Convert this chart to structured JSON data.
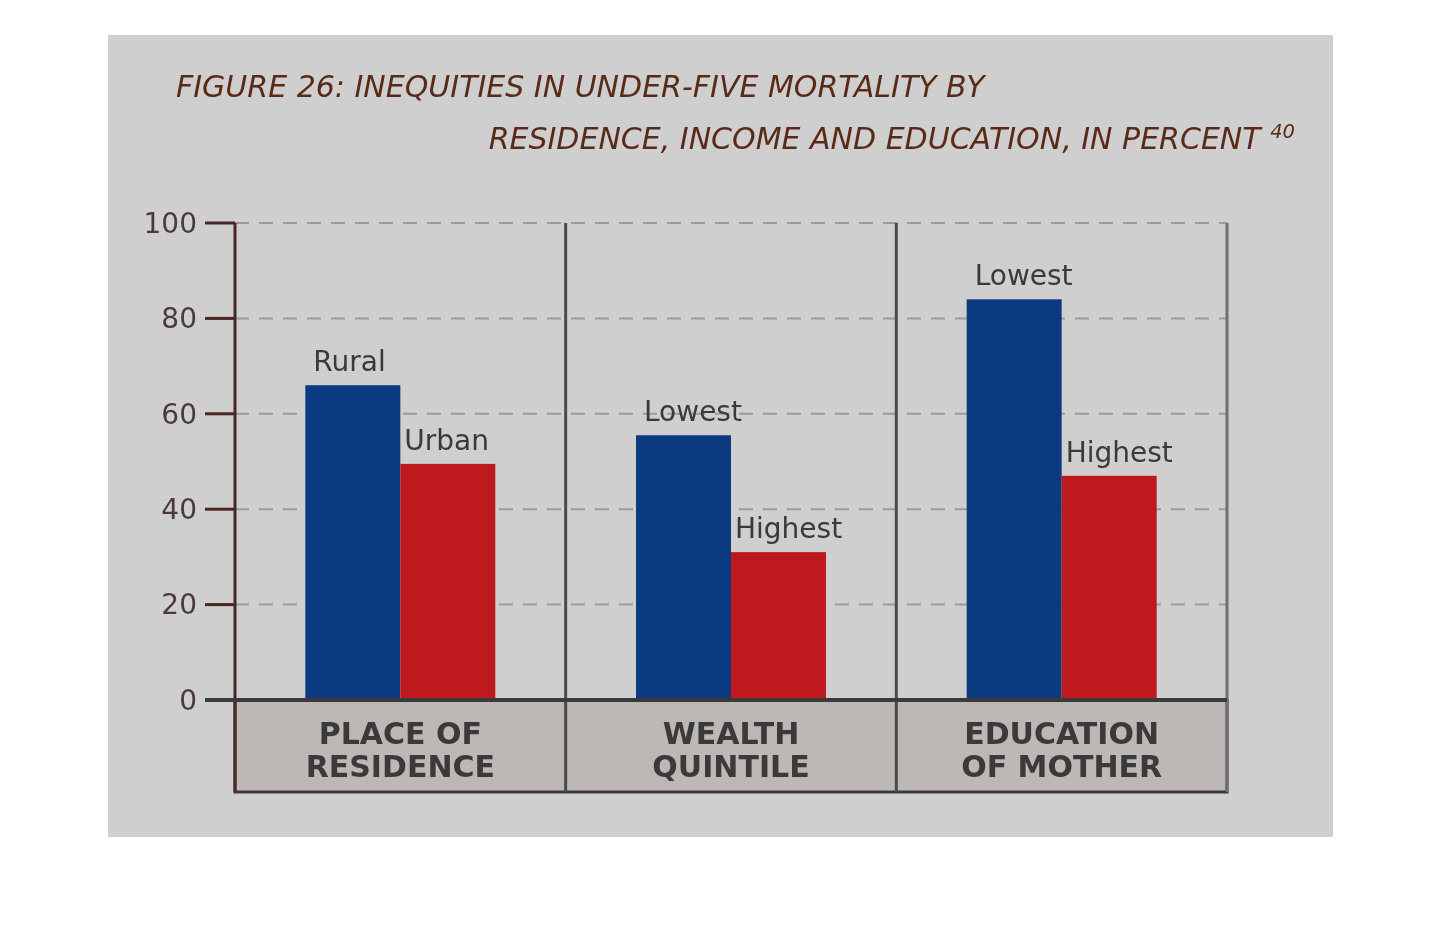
{
  "chart_data": {
    "type": "bar",
    "title": "FIGURE 26: INEQUITIES IN UNDER-FIVE MORTALITY BY\nRESIDENCE, INCOME AND EDUCATION, IN PERCENT $^{40}$",
    "categories": [
      "Rural",
      "Urban",
      "Lowest",
      "Highest",
      "Lowest",
      "Highest"
    ],
    "values": [
      66,
      49.5,
      55.5,
      31,
      84,
      47
    ],
    "colors": [
      "#0b3a80",
      "#be191d",
      "#0b3a80",
      "#be191d",
      "#0b3a80",
      "#be191d"
    ],
    "annotations": [
      "PLACE OF\nRESIDENCE",
      "WEALTH\nQUINTILE",
      "EDUCATION\nOF MOTHER"
    ],
    "ylim": [
      0,
      100
    ],
    "yticks": [
      0,
      20,
      40,
      60,
      80,
      100
    ],
    "grid": "y"
  }
}
